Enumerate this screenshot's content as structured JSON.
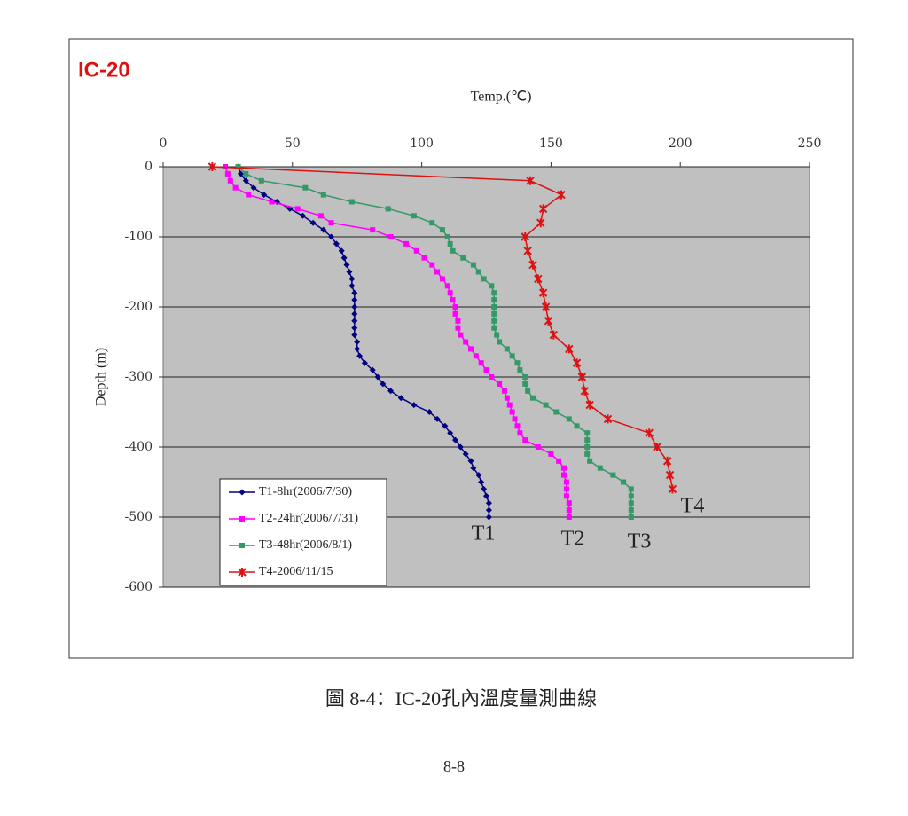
{
  "chart_data": {
    "type": "line",
    "title": "IC-20",
    "x_label": "Temp.(℃)",
    "y_label": "Depth (m)",
    "xlim": [
      0,
      250
    ],
    "xticks": [
      0,
      50,
      100,
      150,
      200,
      250
    ],
    "ylim": [
      -600,
      0
    ],
    "yticks": [
      0,
      -100,
      -200,
      -300,
      -400,
      -500,
      -600
    ],
    "grid": true,
    "legend": "lower left",
    "series": [
      {
        "name": "T1-8hr(2006/7/30)",
        "color": "#000080",
        "marker": "diamond",
        "x": [
          29,
          30,
          32,
          35,
          39,
          44,
          49,
          54,
          58,
          62,
          65,
          67,
          69,
          70,
          71,
          72,
          73,
          73,
          74,
          74,
          74,
          74,
          74,
          74,
          74,
          75,
          75,
          76,
          78,
          81,
          83,
          85,
          88,
          92,
          97,
          103,
          106,
          109,
          111,
          113,
          115,
          117,
          119,
          120,
          122,
          123,
          124,
          125,
          126,
          126,
          126
        ],
        "values": [
          0,
          -10,
          -20,
          -30,
          -40,
          -50,
          -60,
          -70,
          -80,
          -90,
          -100,
          -110,
          -120,
          -130,
          -140,
          -150,
          -160,
          -170,
          -180,
          -190,
          -200,
          -210,
          -220,
          -230,
          -240,
          -250,
          -260,
          -270,
          -280,
          -290,
          -300,
          -310,
          -320,
          -330,
          -340,
          -350,
          -360,
          -370,
          -380,
          -390,
          -400,
          -410,
          -420,
          -430,
          -440,
          -450,
          -460,
          -470,
          -480,
          -490,
          -500
        ]
      },
      {
        "name": "T2-24hr(2006/7/31)",
        "color": "#ff00ff",
        "marker": "square",
        "x": [
          24,
          25,
          26,
          28,
          33,
          42,
          52,
          61,
          65,
          81,
          88,
          94,
          98,
          101,
          104,
          106,
          108,
          110,
          111,
          112,
          113,
          113,
          114,
          114,
          115,
          117,
          119,
          121,
          123,
          125,
          127,
          130,
          132,
          133,
          134,
          135,
          136,
          137,
          138,
          140,
          145,
          150,
          153,
          155,
          155,
          156,
          156,
          156,
          157,
          157,
          157
        ],
        "values": [
          0,
          -10,
          -20,
          -30,
          -40,
          -50,
          -60,
          -70,
          -80,
          -90,
          -100,
          -110,
          -120,
          -130,
          -140,
          -150,
          -160,
          -170,
          -180,
          -190,
          -200,
          -210,
          -220,
          -230,
          -240,
          -250,
          -260,
          -270,
          -280,
          -290,
          -300,
          -310,
          -320,
          -330,
          -340,
          -350,
          -360,
          -370,
          -380,
          -390,
          -400,
          -410,
          -420,
          -430,
          -440,
          -450,
          -460,
          -470,
          -480,
          -490,
          -500
        ]
      },
      {
        "name": "T3-48hr(2006/8/1)",
        "color": "#339966",
        "marker": "square",
        "x": [
          29,
          32,
          38,
          55,
          62,
          73,
          87,
          97,
          104,
          108,
          110,
          111,
          112,
          116,
          120,
          122,
          124,
          127,
          128,
          128,
          128,
          128,
          128,
          128,
          129,
          130,
          133,
          135,
          137,
          138,
          140,
          140,
          141,
          143,
          148,
          152,
          157,
          160,
          164,
          164,
          164,
          164,
          165,
          169,
          174,
          178,
          181,
          181,
          181,
          181,
          181
        ],
        "values": [
          0,
          -10,
          -20,
          -30,
          -40,
          -50,
          -60,
          -70,
          -80,
          -90,
          -100,
          -110,
          -120,
          -130,
          -140,
          -150,
          -160,
          -170,
          -180,
          -190,
          -200,
          -210,
          -220,
          -230,
          -240,
          -250,
          -260,
          -270,
          -280,
          -290,
          -300,
          -310,
          -320,
          -330,
          -340,
          -350,
          -360,
          -370,
          -380,
          -390,
          -400,
          -410,
          -420,
          -430,
          -440,
          -450,
          -460,
          -470,
          -480,
          -490,
          -500
        ]
      },
      {
        "name": "T4-2006/11/15",
        "color": "#dd1111",
        "marker": "star",
        "x": [
          19,
          142,
          154,
          147,
          146,
          140,
          141,
          143,
          145,
          147,
          148,
          149,
          151,
          157,
          160,
          162,
          163,
          165,
          172,
          188,
          191,
          195,
          196,
          197
        ],
        "values": [
          0,
          -20,
          -40,
          -60,
          -80,
          -100,
          -120,
          -140,
          -160,
          -180,
          -200,
          -220,
          -240,
          -260,
          -280,
          -300,
          -320,
          -340,
          -360,
          -380,
          -400,
          -420,
          -440,
          -460
        ]
      }
    ],
    "annotations": [
      "T1",
      "T2",
      "T3",
      "T4"
    ]
  },
  "caption": "圖 8-4：IC-20孔內溫度量測曲線",
  "page_number": "8-8"
}
